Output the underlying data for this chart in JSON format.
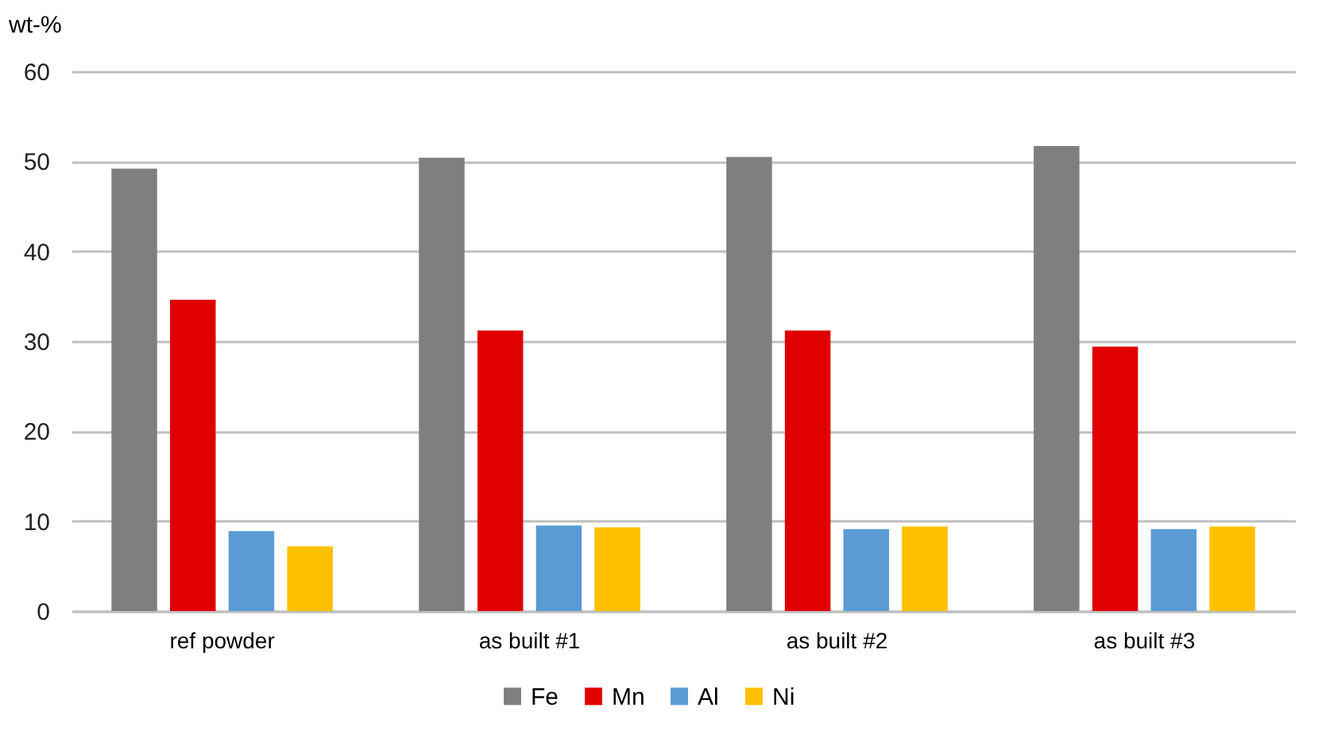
{
  "chart_data": {
    "type": "bar",
    "ylabel": "wt-%",
    "categories": [
      "ref powder",
      "as built #1",
      "as built #2",
      "as built #3"
    ],
    "series": [
      {
        "name": "Fe",
        "color": "#7f7f7f",
        "values": [
          49.2,
          50.4,
          50.5,
          51.7
        ]
      },
      {
        "name": "Mn",
        "color": "#e00000",
        "values": [
          34.6,
          31.2,
          31.2,
          29.4
        ]
      },
      {
        "name": "Al",
        "color": "#5b9bd5",
        "values": [
          8.9,
          9.5,
          9.1,
          9.1
        ]
      },
      {
        "name": "Ni",
        "color": "#ffc000",
        "values": [
          7.2,
          9.3,
          9.4,
          9.4
        ]
      }
    ],
    "ylim": [
      0,
      60
    ],
    "yticks": [
      0,
      10,
      20,
      30,
      40,
      50,
      60
    ],
    "grid": "y",
    "legend": "bottom"
  }
}
